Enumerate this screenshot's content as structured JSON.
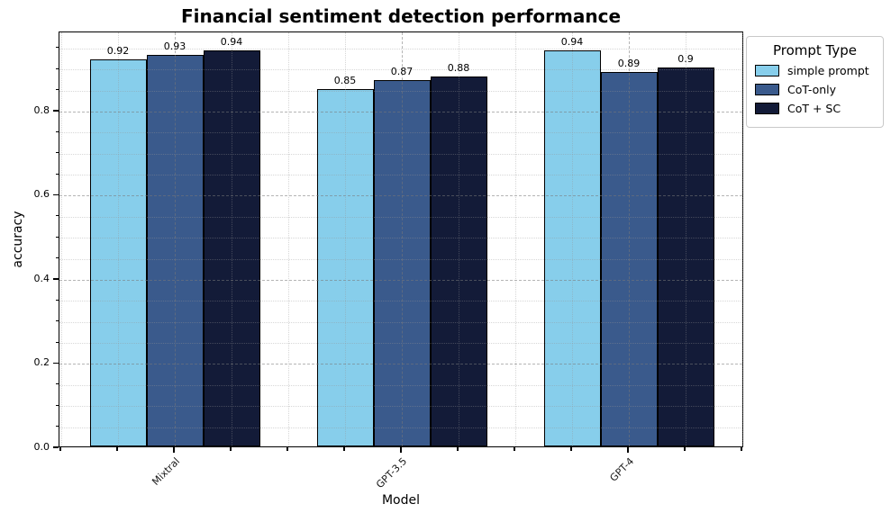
{
  "title": "Financial sentiment detection performance",
  "axes": {
    "xlabel": "Model",
    "ylabel": "accuracy"
  },
  "legend": {
    "title": "Prompt Type",
    "items": [
      {
        "label": "simple prompt",
        "color": "#87CEEB"
      },
      {
        "label": "CoT-only",
        "color": "#3A5A8C"
      },
      {
        "label": "CoT + SC",
        "color": "#131B38"
      }
    ]
  },
  "chart_data": {
    "type": "bar",
    "title": "Financial sentiment detection performance",
    "xlabel": "Model",
    "ylabel": "accuracy",
    "categories": [
      "Mixtral",
      "GPT-3.5",
      "GPT-4"
    ],
    "series": [
      {
        "name": "simple prompt",
        "color": "#87CEEB",
        "values": [
          0.92,
          0.85,
          0.94
        ],
        "labels": [
          "0.92",
          "0.85",
          "0.94"
        ]
      },
      {
        "name": "CoT-only",
        "color": "#3A5A8C",
        "values": [
          0.93,
          0.87,
          0.89
        ],
        "labels": [
          "0.93",
          "0.87",
          "0.89"
        ]
      },
      {
        "name": "CoT + SC",
        "color": "#131B38",
        "values": [
          0.94,
          0.88,
          0.9
        ],
        "labels": [
          "0.94",
          "0.88",
          "0.9"
        ]
      }
    ],
    "ylim": [
      0,
      0.988
    ],
    "y_major_ticks": [
      0.0,
      0.2,
      0.4,
      0.6,
      0.8
    ],
    "y_tick_labels": [
      "0.0",
      "0.2",
      "0.4",
      "0.6",
      "0.8"
    ],
    "y_minor_step": 0.05,
    "grid": true,
    "grid_style": "dashed major, dotted minor, drawn over bars",
    "bar_edge_color": "#000000",
    "legend_position": "outside upper right"
  }
}
